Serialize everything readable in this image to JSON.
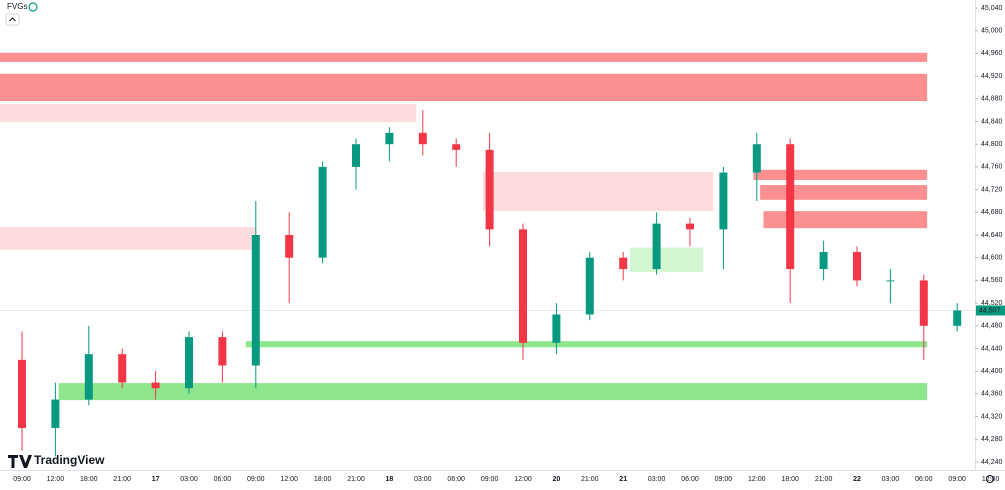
{
  "chart_data": {
    "type": "candlestick",
    "indicator": "FVGs",
    "brand": "TradingView",
    "categories": [
      "09:00",
      "12:00",
      "18:00",
      "21:00",
      "17",
      "03:00",
      "06:00",
      "09:00",
      "12:00",
      "18:00",
      "21:00",
      "18",
      "03:00",
      "06:00",
      "09:00",
      "12:00",
      "20",
      "21:00",
      "21",
      "03:00",
      "06:00",
      "09:00",
      "12:00",
      "18:00",
      "21:00",
      "22",
      "03:00",
      "06:00",
      "09:00",
      "12:00"
    ],
    "candles": {
      "open": [
        44420,
        44300,
        44350,
        44430,
        44380,
        44370,
        44460,
        44410,
        44640,
        44600,
        44760,
        44800,
        44820,
        44800,
        44790,
        44650,
        44450,
        44500,
        44600,
        44580,
        44660,
        44650,
        44750,
        44800,
        44580,
        44610,
        44560,
        44560,
        44480,
        null
      ],
      "high": [
        44470,
        44380,
        44480,
        44440,
        44400,
        44470,
        44470,
        44700,
        44680,
        44770,
        44810,
        44830,
        44860,
        44810,
        44820,
        44660,
        44520,
        44610,
        44610,
        44680,
        44670,
        44760,
        44820,
        44810,
        44630,
        44620,
        44580,
        44570,
        44520,
        null
      ],
      "low": [
        44260,
        44250,
        44340,
        44370,
        44350,
        44360,
        44380,
        44370,
        44520,
        44590,
        44720,
        44770,
        44780,
        44760,
        44620,
        44420,
        44430,
        44490,
        44560,
        44570,
        44620,
        44580,
        44700,
        44520,
        44560,
        44550,
        44520,
        44420,
        44470,
        null
      ],
      "close": [
        44300,
        44350,
        44430,
        44380,
        44370,
        44460,
        44410,
        44640,
        44600,
        44760,
        44800,
        44820,
        44800,
        44790,
        44650,
        44450,
        44500,
        44600,
        44580,
        44660,
        44650,
        44750,
        44800,
        44580,
        44610,
        44560,
        44560,
        44480,
        44507,
        null
      ]
    },
    "up_color": "#089981",
    "down_color": "#f23645",
    "zones": [
      {
        "top": 44961,
        "bottom": 44945,
        "x0": -0.7,
        "x1": 27.1,
        "color": "#fc8f8f"
      },
      {
        "top": 44924,
        "bottom": 44876,
        "x0": -0.7,
        "x1": 27.1,
        "color": "#fc8f8f"
      },
      {
        "top": 44871,
        "bottom": 44839,
        "x0": -0.7,
        "x1": 11.8,
        "color": "#fcdcdc"
      },
      {
        "top": 44654,
        "bottom": 44614,
        "x0": -0.7,
        "x1": 7.0,
        "color": "#fcdcdc"
      },
      {
        "top": 44751,
        "bottom": 44682,
        "x0": 13.8,
        "x1": 20.7,
        "color": "#fcdcdc"
      },
      {
        "top": 44755,
        "bottom": 44737,
        "x0": 21.9,
        "x1": 27.1,
        "color": "#fc8f8f"
      },
      {
        "top": 44728,
        "bottom": 44702,
        "x0": 22.1,
        "x1": 27.1,
        "color": "#fc8f8f"
      },
      {
        "top": 44682,
        "bottom": 44652,
        "x0": 22.2,
        "x1": 27.1,
        "color": "#fc8f8f"
      },
      {
        "top": 44618,
        "bottom": 44575,
        "x0": 18.2,
        "x1": 20.4,
        "color": "#d3f7d3"
      },
      {
        "top": 44453,
        "bottom": 44442,
        "x0": 6.7,
        "x1": 27.1,
        "color": "#8ee68e"
      },
      {
        "top": 44379,
        "bottom": 44349,
        "x0": 1.1,
        "x1": 27.1,
        "color": "#8ee68e"
      }
    ],
    "last_price": {
      "value": 44507,
      "label": "44,507"
    },
    "ylim": [
      44240,
      45040
    ],
    "yticks": [
      {
        "value": 44240,
        "label": "44,240"
      },
      {
        "value": 44280,
        "label": "44,280"
      },
      {
        "value": 44320,
        "label": "44,320"
      },
      {
        "value": 44360,
        "label": "44,360"
      },
      {
        "value": 44400,
        "label": "44,400"
      },
      {
        "value": 44440,
        "label": "44,440"
      },
      {
        "value": 44480,
        "label": "44,480"
      },
      {
        "value": 44520,
        "label": "44,520"
      },
      {
        "value": 44560,
        "label": "44,560"
      },
      {
        "value": 44600,
        "label": "44,600"
      },
      {
        "value": 44640,
        "label": "44,640"
      },
      {
        "value": 44680,
        "label": "44,680"
      },
      {
        "value": 44720,
        "label": "44,720"
      },
      {
        "value": 44760,
        "label": "44,760"
      },
      {
        "value": 44800,
        "label": "44,800"
      },
      {
        "value": 44840,
        "label": "44,840"
      },
      {
        "value": 44880,
        "label": "44,880"
      },
      {
        "value": 44920,
        "label": "44,920"
      },
      {
        "value": 44960,
        "label": "44,960"
      },
      {
        "value": 45000,
        "label": "45,000"
      },
      {
        "value": 45040,
        "label": "45,040"
      }
    ]
  }
}
